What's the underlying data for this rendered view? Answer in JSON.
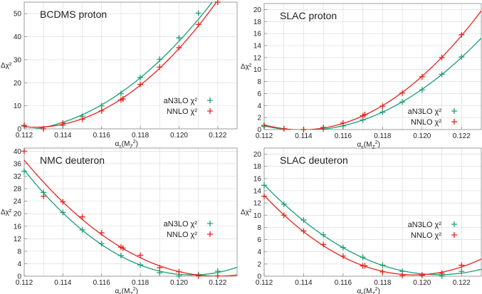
{
  "colors": {
    "aN3LO": "#1a9e74",
    "NNLO": "#e8231c",
    "grid": "#d8d8d8",
    "axis": "#888888"
  },
  "chart_data": [
    {
      "type": "scatter",
      "title": "BCDMS proton",
      "ylabel": "Δχ²",
      "xlabel_parts": [
        "α",
        "s",
        "(M",
        "Z",
        "2",
        ")"
      ],
      "xlim": [
        0.112,
        0.123
      ],
      "ylim": [
        0,
        55
      ],
      "xticks": [
        "0.112",
        "0.114",
        "0.116",
        "0.118",
        "0.120",
        "0.122"
      ],
      "yticks": [
        "0",
        "10",
        "20",
        "30",
        "40",
        "50"
      ],
      "grid": true,
      "legend": "right",
      "series": [
        {
          "name": "aN3LO χ²",
          "color_key": "aN3LO",
          "x": [
            0.112,
            0.113,
            0.114,
            0.115,
            0.116,
            0.117,
            0.118,
            0.119,
            0.12,
            0.121,
            0.122
          ],
          "y": [
            1.2,
            0,
            1.5,
            5.5,
            10,
            15.3,
            22.3,
            30.2,
            39.5,
            50.2,
            55
          ]
        },
        {
          "name": "NNLO χ²",
          "color_key": "NNLO",
          "x": [
            0.112,
            0.113,
            0.114,
            0.115,
            0.116,
            0.117,
            0.1171,
            0.118,
            0.119,
            0.12,
            0.121,
            0.122
          ],
          "y": [
            1.5,
            0,
            2.5,
            4.2,
            7.8,
            12.5,
            13,
            19.3,
            26.8,
            35.2,
            45.3,
            55
          ]
        }
      ]
    },
    {
      "type": "scatter",
      "title": "SLAC proton",
      "ylabel": "Δχ²",
      "xlabel_parts": [
        "α",
        "s",
        "(M",
        "Z",
        "2",
        ")"
      ],
      "xlim": [
        0.112,
        0.123
      ],
      "ylim": [
        0,
        21
      ],
      "xticks": [
        "0.112",
        "0.114",
        "0.116",
        "0.118",
        "0.120",
        "0.122"
      ],
      "yticks": [
        "0",
        "2",
        "4",
        "6",
        "8",
        "10",
        "12",
        "14",
        "16",
        "18",
        "20"
      ],
      "grid": true,
      "legend": "bottom-right",
      "series": [
        {
          "name": "aN3LO χ²",
          "color_key": "aN3LO",
          "x": [
            0.112,
            0.113,
            0.114,
            0.115,
            0.116,
            0.117,
            0.118,
            0.119,
            0.12,
            0.121,
            0.122
          ],
          "y": [
            0.5,
            0.1,
            0,
            0.1,
            0.6,
            1.6,
            2.9,
            4.6,
            6.6,
            9.2,
            12.1
          ]
        },
        {
          "name": "NNLO χ²",
          "color_key": "NNLO",
          "x": [
            0.112,
            0.113,
            0.114,
            0.115,
            0.116,
            0.117,
            0.1171,
            0.118,
            0.119,
            0.12,
            0.121,
            0.122
          ],
          "y": [
            0.7,
            0.15,
            0,
            0.35,
            1.1,
            2.3,
            2.5,
            3.9,
            6.1,
            8.8,
            12.0,
            15.8
          ]
        }
      ]
    },
    {
      "type": "scatter",
      "title": "NMC deuteron",
      "ylabel": "Δχ²",
      "xlabel_parts": [
        "α",
        "s",
        "(M",
        "Z",
        "2",
        ")"
      ],
      "xlim": [
        0.112,
        0.123
      ],
      "ylim": [
        0,
        41
      ],
      "xticks": [
        "0.112",
        "0.114",
        "0.116",
        "0.118",
        "0.120",
        "0.122"
      ],
      "yticks": [
        "0",
        "4",
        "8",
        "12",
        "16",
        "20",
        "24",
        "28",
        "32",
        "36",
        "40"
      ],
      "grid": true,
      "legend": "right",
      "series": [
        {
          "name": "aN3LO χ²",
          "color_key": "aN3LO",
          "x": [
            0.112,
            0.113,
            0.114,
            0.115,
            0.116,
            0.117,
            0.118,
            0.119,
            0.12,
            0.121,
            0.122
          ],
          "y": [
            33.6,
            26.8,
            20.4,
            14.8,
            10.4,
            6.6,
            3.6,
            1.1,
            0.1,
            0.5,
            1.6
          ]
        },
        {
          "name": "NNLO χ²",
          "color_key": "NNLO",
          "x": [
            0.112,
            0.113,
            0.114,
            0.115,
            0.116,
            0.117,
            0.1171,
            0.118,
            0.119,
            0.12,
            0.121,
            0.122
          ],
          "y": [
            40,
            25.6,
            23.8,
            19,
            13.9,
            9.3,
            9,
            6.7,
            2.7,
            1.4,
            0.1,
            0.1
          ]
        }
      ]
    },
    {
      "type": "scatter",
      "title": "SLAC deuteron",
      "ylabel": "Δχ²",
      "xlabel_parts": [
        "α",
        "s",
        "(M",
        "Z",
        "2",
        ")"
      ],
      "xlim": [
        0.112,
        0.123
      ],
      "ylim": [
        0,
        21
      ],
      "xticks": [
        "0.112",
        "0.114",
        "0.116",
        "0.118",
        "0.120",
        "0.122"
      ],
      "yticks": [
        "0",
        "2",
        "4",
        "6",
        "8",
        "10",
        "12",
        "14",
        "16",
        "18",
        "20"
      ],
      "grid": true,
      "legend": "right",
      "series": [
        {
          "name": "aN3LO χ²",
          "color_key": "aN3LO",
          "x": [
            0.112,
            0.113,
            0.114,
            0.115,
            0.116,
            0.117,
            0.118,
            0.119,
            0.12,
            0.121,
            0.122
          ],
          "y": [
            14.9,
            11.8,
            9.2,
            6.8,
            4.7,
            3.1,
            1.8,
            0.8,
            0.2,
            0.05,
            0.8
          ]
        },
        {
          "name": "NNLO χ²",
          "color_key": "NNLO",
          "x": [
            0.112,
            0.113,
            0.114,
            0.115,
            0.116,
            0.117,
            0.1171,
            0.118,
            0.119,
            0.12,
            0.121,
            0.122
          ],
          "y": [
            13.1,
            10,
            7.4,
            5.2,
            3.3,
            1.7,
            1.7,
            0.7,
            0.1,
            0.15,
            0.5,
            1.8
          ]
        }
      ]
    }
  ]
}
